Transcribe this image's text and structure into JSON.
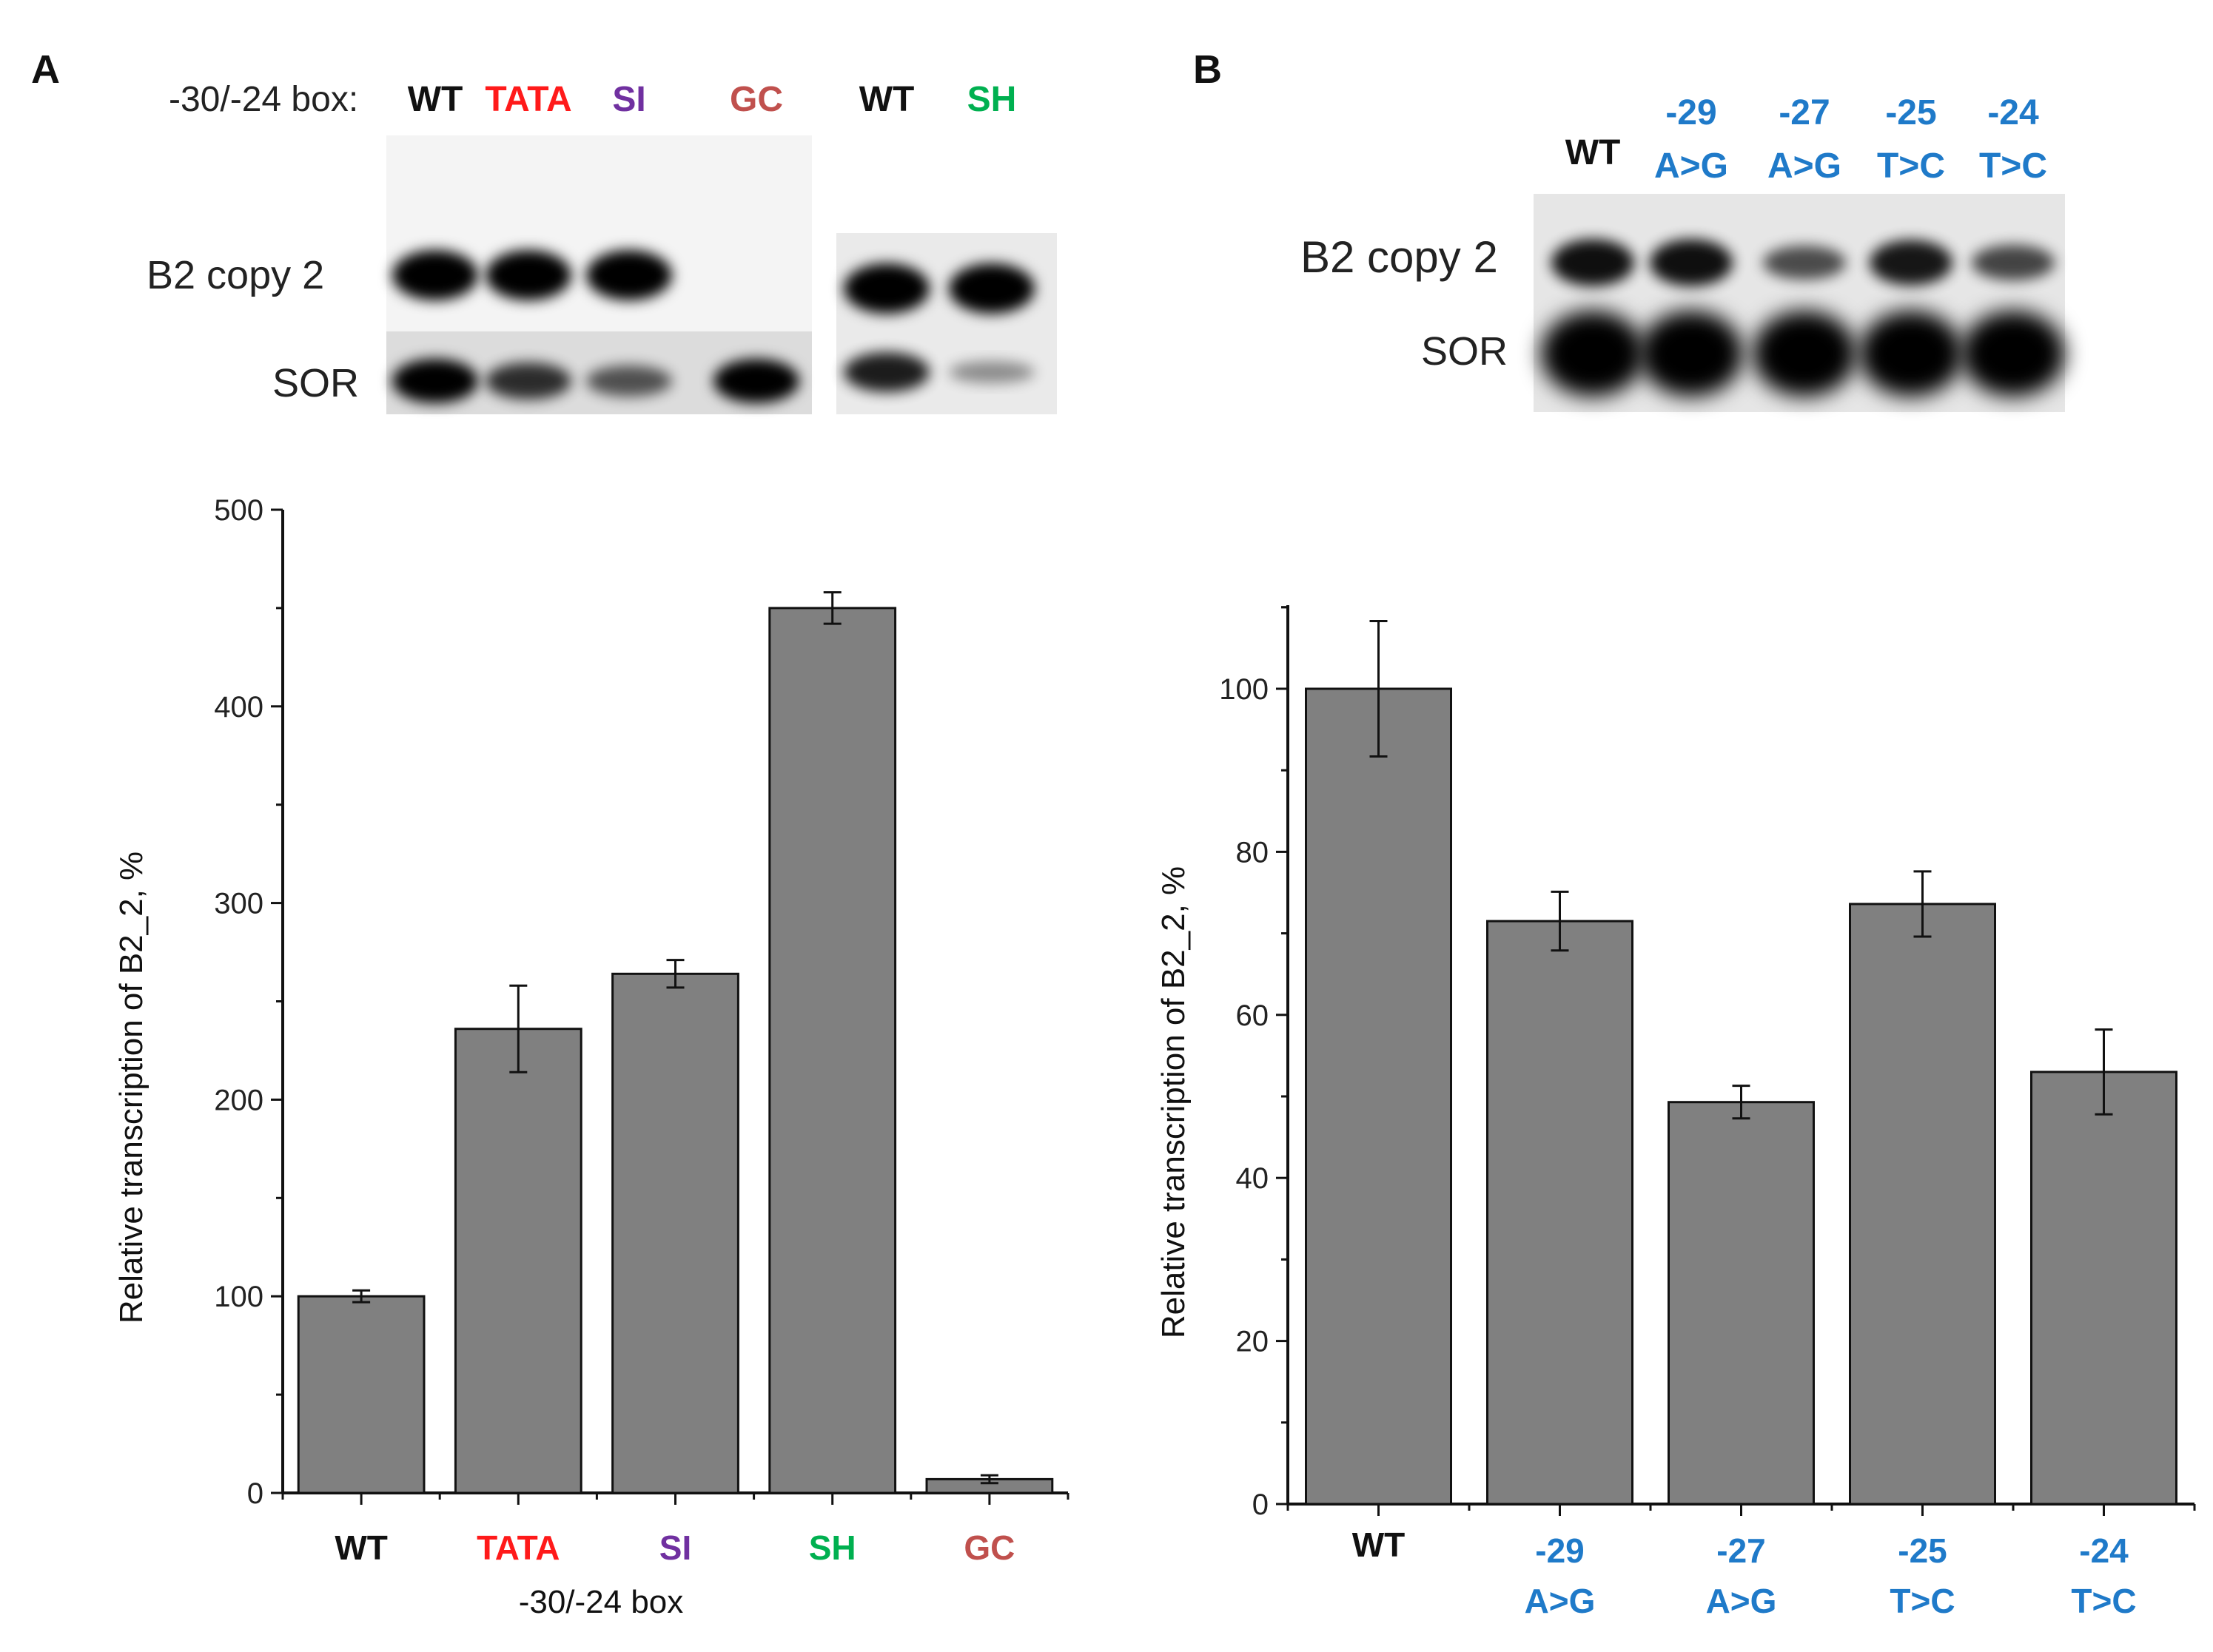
{
  "panel_a": {
    "letter": "A",
    "blot": {
      "header": "-30/-24 box:",
      "lanes_left": [
        {
          "label": "WT",
          "color": "#111111",
          "b2": 1.0,
          "sor": 1.0
        },
        {
          "label": "TATA",
          "color": "#ff1a1a",
          "b2": 1.0,
          "sor": 0.75
        },
        {
          "label": "SI",
          "color": "#7030a0",
          "b2": 1.0,
          "sor": 0.55
        },
        {
          "label": "GC",
          "color": "#c0504d",
          "b2": 0.0,
          "sor": 1.0
        }
      ],
      "lanes_right": [
        {
          "label": "WT",
          "color": "#111111",
          "b2": 1.0,
          "sor": 0.85
        },
        {
          "label": "SH",
          "color": "#00b050",
          "b2": 1.0,
          "sor": 0.25
        }
      ],
      "row_labels": [
        "B2 copy 2",
        "SOR"
      ]
    }
  },
  "panel_b": {
    "letter": "B",
    "blot": {
      "lanes": [
        {
          "line1": "",
          "line2": "WT",
          "color": "#111111",
          "b2": 0.9,
          "sor": 1.0
        },
        {
          "line1": "-29",
          "line2": "A>G",
          "color": "#1f7ac9",
          "b2": 0.9,
          "sor": 1.0
        },
        {
          "line1": "-27",
          "line2": "A>G",
          "color": "#1f7ac9",
          "b2": 0.5,
          "sor": 1.0
        },
        {
          "line1": "-25",
          "line2": "T>C",
          "color": "#1f7ac9",
          "b2": 0.85,
          "sor": 1.0
        },
        {
          "line1": "-24",
          "line2": "T>C",
          "color": "#1f7ac9",
          "b2": 0.55,
          "sor": 1.0
        }
      ],
      "row_labels": [
        "B2 copy 2",
        "SOR"
      ]
    }
  },
  "chart_data": [
    {
      "type": "bar",
      "title": "",
      "categories": [
        "WT",
        "TATA",
        "SI",
        "SH",
        "GC"
      ],
      "category_colors": [
        "#111111",
        "#ff1a1a",
        "#7030a0",
        "#00b050",
        "#c0504d"
      ],
      "values": [
        100,
        236,
        264,
        450,
        7
      ],
      "errors": [
        3,
        22,
        7,
        8,
        2
      ],
      "ylim": [
        0,
        500
      ],
      "yticks": [
        0,
        100,
        200,
        300,
        400,
        500
      ],
      "xlabel": "-30/-24 box",
      "ylabel": "Relative  transcription of B2_2, %",
      "bar_color": "#808080"
    },
    {
      "type": "bar",
      "title": "",
      "categories": [
        [
          "",
          "WT"
        ],
        [
          "-29",
          "A>G"
        ],
        [
          "-27",
          "A>G"
        ],
        [
          "-25",
          "T>C"
        ],
        [
          "-24",
          "T>C"
        ]
      ],
      "category_colors": [
        "#111111",
        "#1f7ac9",
        "#1f7ac9",
        "#1f7ac9",
        "#1f7ac9"
      ],
      "values": [
        100,
        71.5,
        49.3,
        73.6,
        53
      ],
      "errors": [
        8.3,
        3.6,
        2,
        4,
        5.2
      ],
      "ylim": [
        0,
        110
      ],
      "yticks": [
        0,
        20,
        40,
        60,
        80,
        100
      ],
      "xlabel": "",
      "ylabel": "Relative  transcription of B2_2, %",
      "bar_color": "#808080"
    }
  ]
}
